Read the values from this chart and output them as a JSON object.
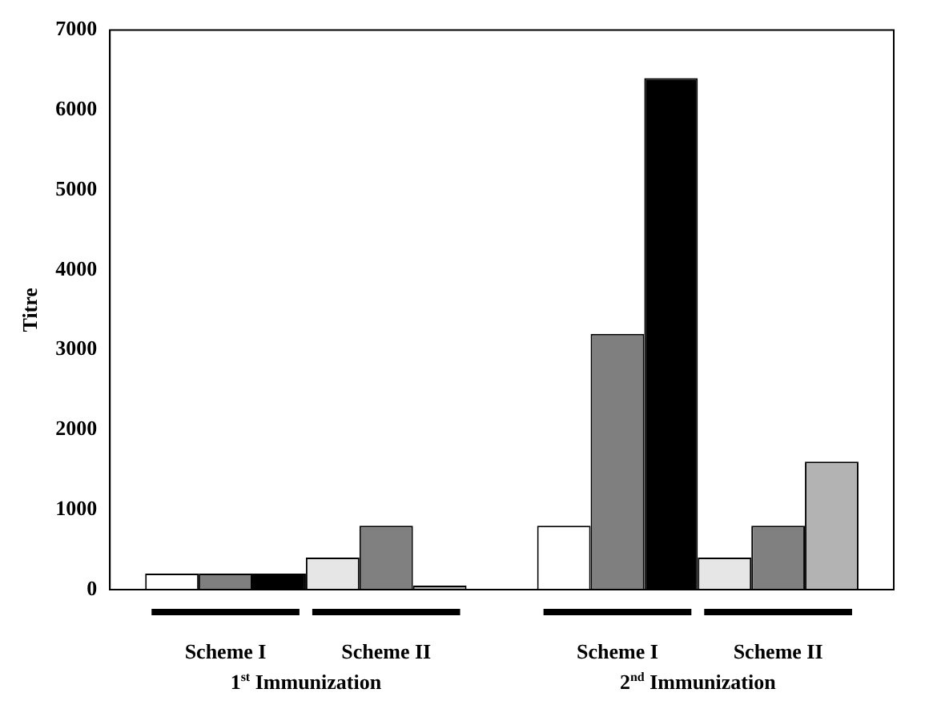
{
  "chart_data": {
    "type": "bar",
    "ylabel": "Titre",
    "categories": [
      "1$^{st}$ Immunization",
      "2$^{nd}$ Immunization"
    ],
    "series": [
      {
        "color": "#ffffff",
        "values": [
          200,
          800
        ]
      },
      {
        "color": "#7f7f7f",
        "values": [
          200,
          3200
        ]
      },
      {
        "color": "#000000",
        "values": [
          200,
          6400
        ]
      },
      {
        "color": "#e6e6e6",
        "values": [
          400,
          400
        ]
      },
      {
        "color": "#808080",
        "values": [
          800,
          800
        ]
      },
      {
        "color": "#b3b3b3",
        "values": [
          50,
          1600
        ]
      }
    ],
    "ylim": [
      0,
      7000
    ],
    "yticks": [
      0,
      1000,
      2000,
      3000,
      4000,
      5000,
      6000,
      7000
    ],
    "grid": false,
    "legend": false,
    "annotations": [
      "Scheme I",
      "Scheme II",
      "Scheme I",
      "Scheme II"
    ]
  }
}
